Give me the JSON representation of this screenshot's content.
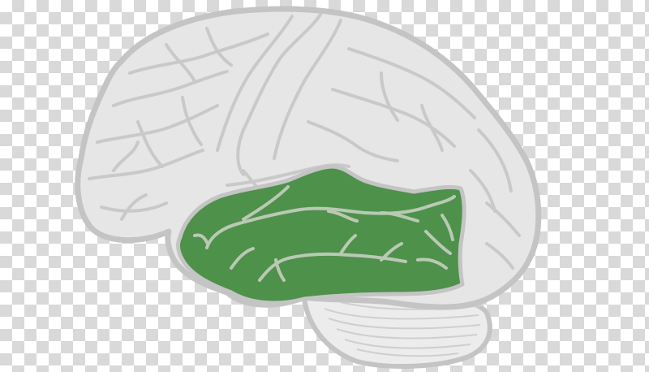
{
  "image": {
    "subject": "brain-lateral-view",
    "highlighted_region": "temporal-lobe",
    "background": "transparency-checkerboard"
  },
  "colors": {
    "brain_fill": "#e6e6e6",
    "brain_outline": "#c4c4c4",
    "sulci": "#c9c9c9",
    "highlight_fill": "#4e914a",
    "highlight_sulci": "#b9c9b4",
    "cerebellum_fill": "#ececec",
    "checker_light": "#ffffff",
    "checker_dark": "#d9d9d9"
  }
}
